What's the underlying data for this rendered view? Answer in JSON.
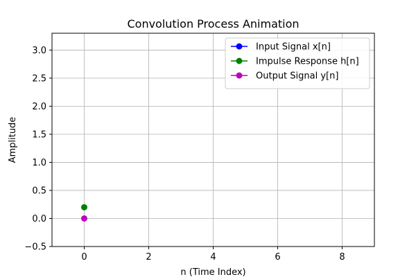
{
  "chart_data": {
    "type": "line",
    "title": "Convolution Process Animation",
    "xlabel": "n (Time Index)",
    "ylabel": "Amplitude",
    "xlim": [
      -1,
      9
    ],
    "ylim": [
      -0.5,
      3.3
    ],
    "xticks": [
      0,
      2,
      4,
      6,
      8
    ],
    "yticks": [
      -0.5,
      0.0,
      0.5,
      1.0,
      1.5,
      2.0,
      2.5,
      3.0
    ],
    "xtick_labels": [
      "0",
      "2",
      "4",
      "6",
      "8"
    ],
    "ytick_labels": [
      "−0.5",
      "0.0",
      "0.5",
      "1.0",
      "1.5",
      "2.0",
      "2.5",
      "3.0"
    ],
    "grid": true,
    "legend_position": "top-right",
    "series": [
      {
        "name": "Input Signal x[n]",
        "color": "#0000ff",
        "x": [],
        "y": []
      },
      {
        "name": "Impulse Response h[n]",
        "color": "#008000",
        "x": [
          0
        ],
        "y": [
          0.2
        ]
      },
      {
        "name": "Output Signal y[n]",
        "color": "#bf00bf",
        "x": [
          0
        ],
        "y": [
          0.0
        ]
      }
    ]
  }
}
